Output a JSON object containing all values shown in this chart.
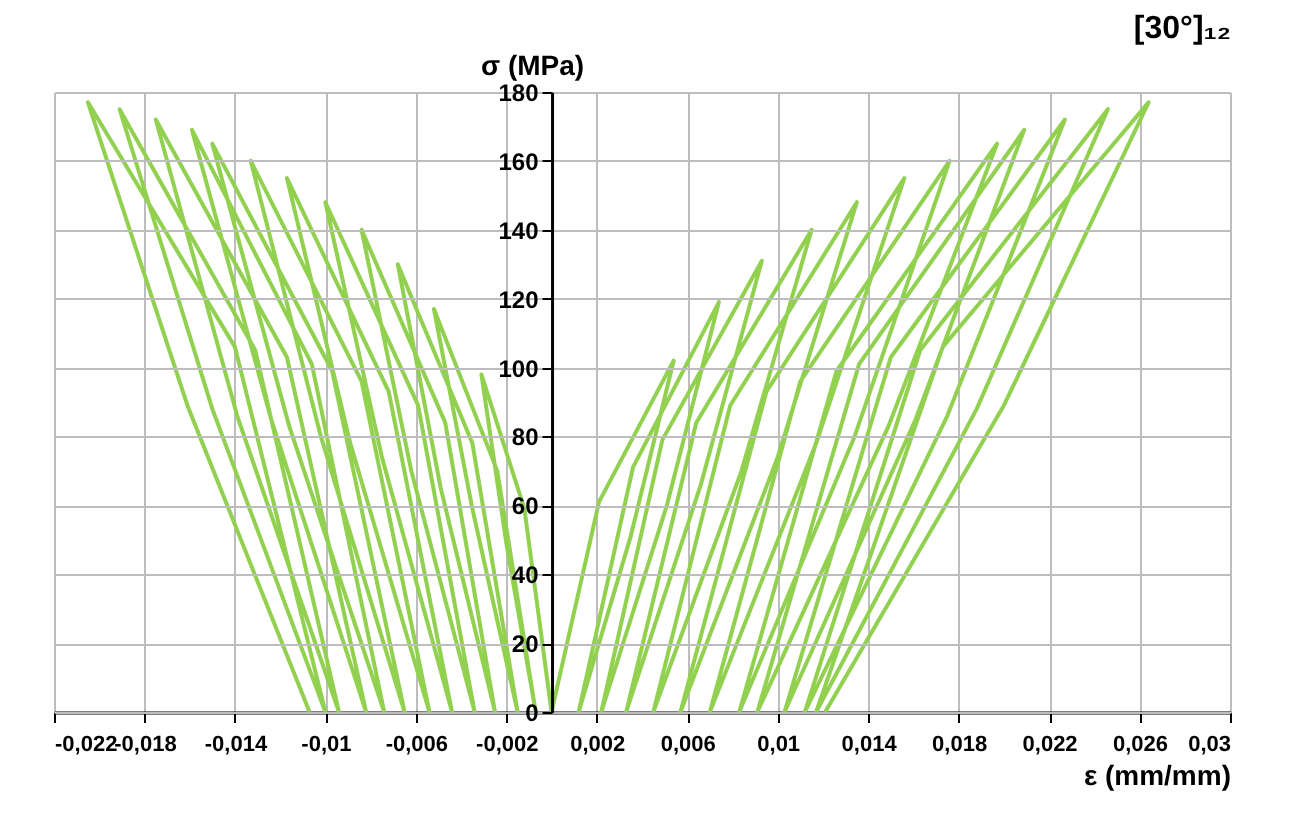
{
  "chart_data": {
    "type": "line",
    "title": "[30°]₁₂",
    "xlabel": "ε (mm/mm)",
    "ylabel": "σ (MPa)",
    "xlim": [
      -0.022,
      0.03
    ],
    "ylim": [
      0,
      180
    ],
    "xticks": [
      {
        "value": -0.022,
        "label": "-0,022"
      },
      {
        "value": -0.018,
        "label": "-0,018"
      },
      {
        "value": -0.014,
        "label": "-0,014"
      },
      {
        "value": -0.01,
        "label": "-0,01"
      },
      {
        "value": -0.006,
        "label": "-0,006"
      },
      {
        "value": -0.002,
        "label": "-0,002"
      },
      {
        "value": 0.002,
        "label": "0,002"
      },
      {
        "value": 0.006,
        "label": "0,006"
      },
      {
        "value": 0.01,
        "label": "0,01"
      },
      {
        "value": 0.014,
        "label": "0,014"
      },
      {
        "value": 0.018,
        "label": "0,018"
      },
      {
        "value": 0.022,
        "label": "0,022"
      },
      {
        "value": 0.026,
        "label": "0,026"
      },
      {
        "value": 0.03,
        "label": "0,03"
      }
    ],
    "yticks": [
      0,
      20,
      40,
      60,
      80,
      100,
      120,
      140,
      160,
      180
    ],
    "grid": true,
    "legend": false,
    "marker": "none",
    "line_style": "solid",
    "series": [
      {
        "color": "#92d050",
        "x": [
          0,
          0.0021,
          0.0054,
          0.0035,
          0.0012,
          0.0036,
          0.0074,
          0.0051,
          0.0022,
          0.0049,
          0.0093,
          0.0066,
          0.0033,
          0.0064,
          0.0115,
          0.0084,
          0.0045,
          0.0079,
          0.0135,
          0.01,
          0.0057,
          0.0095,
          0.0156,
          0.0117,
          0.007,
          0.011,
          0.0176,
          0.0134,
          0.0083,
          0.0126,
          0.0197,
          0.0149,
          0.0091,
          0.0136,
          0.0209,
          0.0161,
          0.0103,
          0.015,
          0.0227,
          0.0175,
          0.0112,
          0.0163,
          0.0246,
          0.0188,
          0.0117,
          0.0173,
          0.0264,
          0.02,
          0.0121
        ],
        "values": [
          0,
          61,
          102,
          51,
          0,
          71,
          119,
          60,
          0,
          79,
          131,
          66,
          0,
          84,
          140,
          70,
          0,
          89,
          148,
          74,
          0,
          93,
          155,
          78,
          0,
          96,
          160,
          80,
          0,
          99,
          165,
          83,
          0,
          101,
          169,
          85,
          0,
          103,
          172,
          86,
          0,
          105,
          175,
          88,
          0,
          106,
          177,
          89,
          0
        ]
      },
      {
        "color": "#92d050",
        "x": [
          0,
          -0.0012,
          -0.0031,
          -0.002,
          -0.0007,
          -0.0024,
          -0.0052,
          -0.0035,
          -0.0015,
          -0.0035,
          -0.0068,
          -0.0049,
          -0.0025,
          -0.0047,
          -0.0084,
          -0.0062,
          -0.0034,
          -0.0059,
          -0.01,
          -0.0075,
          -0.0044,
          -0.0072,
          -0.0117,
          -0.0089,
          -0.0054,
          -0.0084,
          -0.0133,
          -0.0102,
          -0.0065,
          -0.0097,
          -0.015,
          -0.0116,
          -0.0074,
          -0.0106,
          -0.0159,
          -0.0124,
          -0.0082,
          -0.0117,
          -0.0175,
          -0.0139,
          -0.0094,
          -0.0131,
          -0.0191,
          -0.015,
          -0.01,
          -0.014,
          -0.0205,
          -0.0161,
          -0.0107
        ],
        "values": [
          0,
          59,
          98,
          49,
          0,
          70,
          117,
          59,
          0,
          78,
          130,
          65,
          0,
          84,
          140,
          70,
          0,
          89,
          148,
          74,
          0,
          93,
          155,
          78,
          0,
          96,
          160,
          80,
          0,
          99,
          165,
          83,
          0,
          101,
          169,
          85,
          0,
          103,
          172,
          86,
          0,
          105,
          175,
          88,
          0,
          106,
          177,
          89,
          0
        ]
      }
    ]
  }
}
